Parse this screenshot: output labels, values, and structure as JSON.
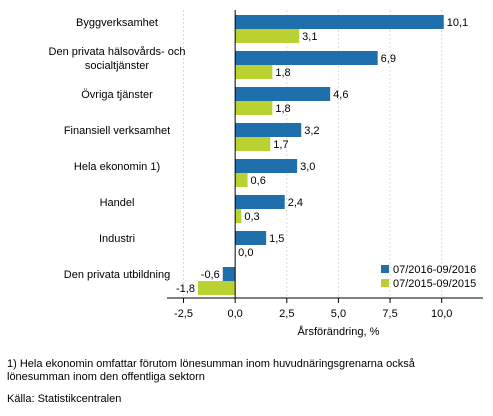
{
  "chart_data": {
    "type": "bar",
    "orientation": "horizontal",
    "title": "",
    "xlabel": "Årsförändring, %",
    "ylabel": "",
    "xlim": [
      -3.3,
      12
    ],
    "xticks": [
      -2.5,
      0,
      2.5,
      5,
      7.5,
      10
    ],
    "xtick_labels": [
      "-2,5",
      "0,0",
      "2,5",
      "5,0",
      "7,5",
      "10,0"
    ],
    "grid": true,
    "legend_position": "bottom-right",
    "categories": [
      "Byggverksamhet",
      "Den privata hälsovårds- och socialtjänster",
      "Övriga tjänster",
      "Finansiell verksamhet",
      "Hela ekonomin 1)",
      "Handel",
      "Industri",
      "Den privata utbildning"
    ],
    "category_label_lines": [
      [
        "Byggverksamhet"
      ],
      [
        "Den privata hälsovårds- och",
        "socialtjänster"
      ],
      [
        "Övriga tjänster"
      ],
      [
        "Finansiell verksamhet"
      ],
      [
        "Hela ekonomin 1)"
      ],
      [
        "Handel"
      ],
      [
        "Industri"
      ],
      [
        "Den privata utbildning"
      ]
    ],
    "series": [
      {
        "name": "07/2016-09/2016",
        "color": "#1f6fad",
        "values": [
          10.1,
          6.9,
          4.6,
          3.2,
          3.0,
          2.4,
          1.5,
          -0.6
        ],
        "value_labels": [
          "10,1",
          "6,9",
          "4,6",
          "3,2",
          "3,0",
          "2,4",
          "1,5",
          "-0,6"
        ]
      },
      {
        "name": "07/2015-09/2015",
        "color": "#b9d232",
        "values": [
          3.1,
          1.8,
          1.8,
          1.7,
          0.6,
          0.3,
          0.0,
          -1.8
        ],
        "value_labels": [
          "3,1",
          "1,8",
          "1,8",
          "1,7",
          "0,6",
          "0,3",
          "0,0",
          "-1,8"
        ]
      }
    ]
  },
  "notes": {
    "footnote_line1": "1) Hela ekonomin omfattar förutom lönesumman inom huvudnäringsgrenarna också",
    "footnote_line2": "lönesumman inom den offentliga sektorn",
    "source": "Källa: Statistikcentralen"
  }
}
